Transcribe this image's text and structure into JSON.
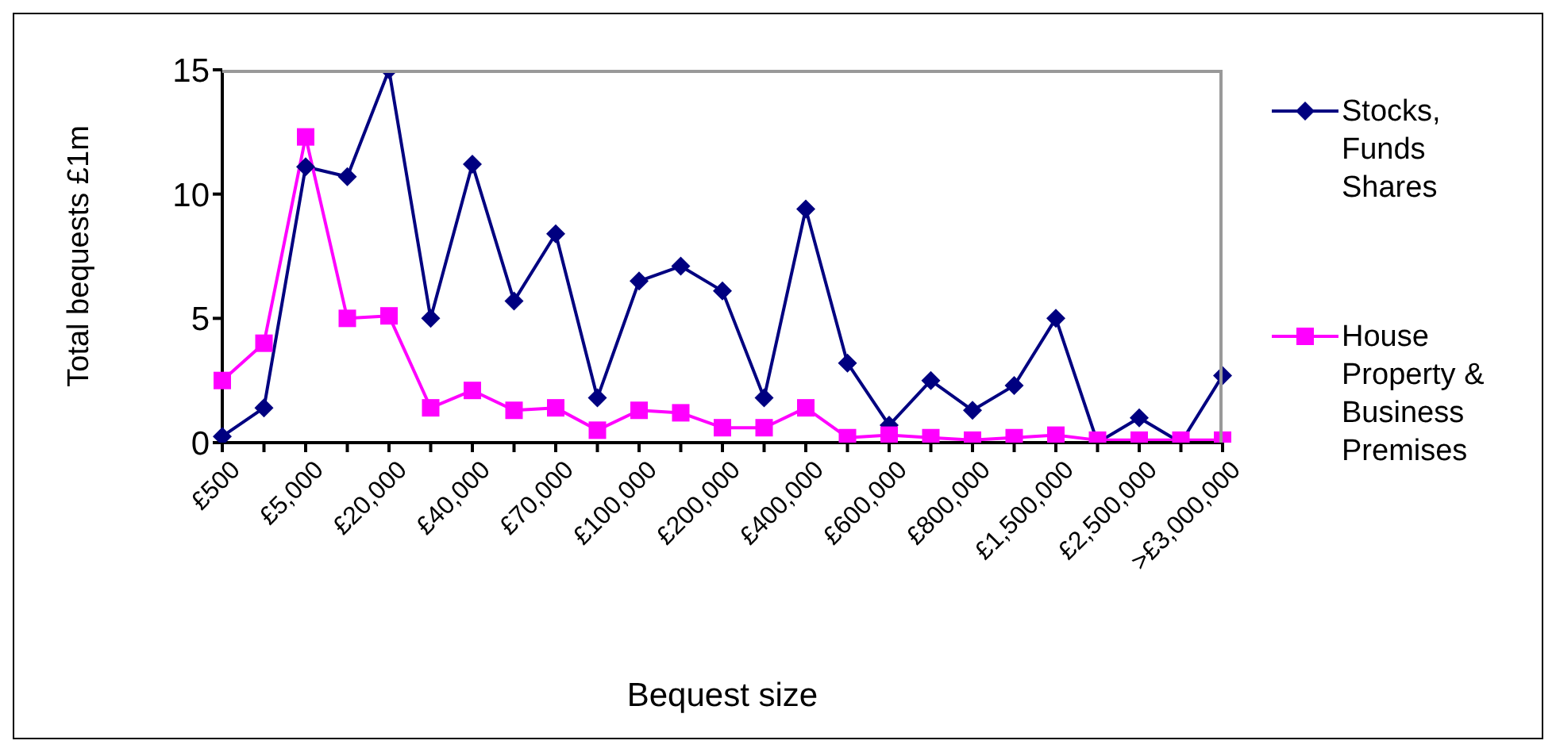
{
  "chart_data": {
    "type": "line",
    "xlabel": "Bequest size",
    "ylabel": "Total bequests £1m",
    "categories": [
      "£500",
      null,
      "£5,000",
      null,
      "£20,000",
      null,
      "£40,000",
      null,
      "£70,000",
      null,
      "£100,000",
      null,
      "£200,000",
      null,
      "£400,000",
      null,
      "£600,000",
      null,
      "£800,000",
      null,
      "£1,500,000",
      null,
      "£2,500,000",
      null,
      ">£3,000,000"
    ],
    "series": [
      {
        "name": "Stocks, Funds Shares",
        "color": "#000080",
        "marker": "diamond",
        "values": [
          0.25,
          1.4,
          11.1,
          10.7,
          15,
          5.0,
          11.2,
          5.7,
          8.4,
          1.8,
          6.5,
          7.1,
          6.1,
          1.8,
          9.4,
          3.2,
          0.7,
          2.5,
          1.3,
          2.3,
          5.0,
          0,
          1.0,
          0,
          2.7
        ]
      },
      {
        "name": "House Property & Business Premises",
        "color": "#ff00ff",
        "marker": "square",
        "values": [
          2.5,
          4.0,
          12.3,
          5.0,
          5.1,
          1.4,
          2.1,
          1.3,
          1.4,
          0.5,
          1.3,
          1.2,
          0.6,
          0.6,
          1.4,
          0.2,
          0.3,
          0.2,
          0.1,
          0.2,
          0.3,
          0.1,
          0.1,
          0.1,
          0.1
        ]
      }
    ],
    "ylim": [
      0,
      15
    ],
    "yticks": [
      0,
      5,
      10,
      15
    ],
    "grid": false,
    "legend": "right",
    "line_style": "solid"
  }
}
